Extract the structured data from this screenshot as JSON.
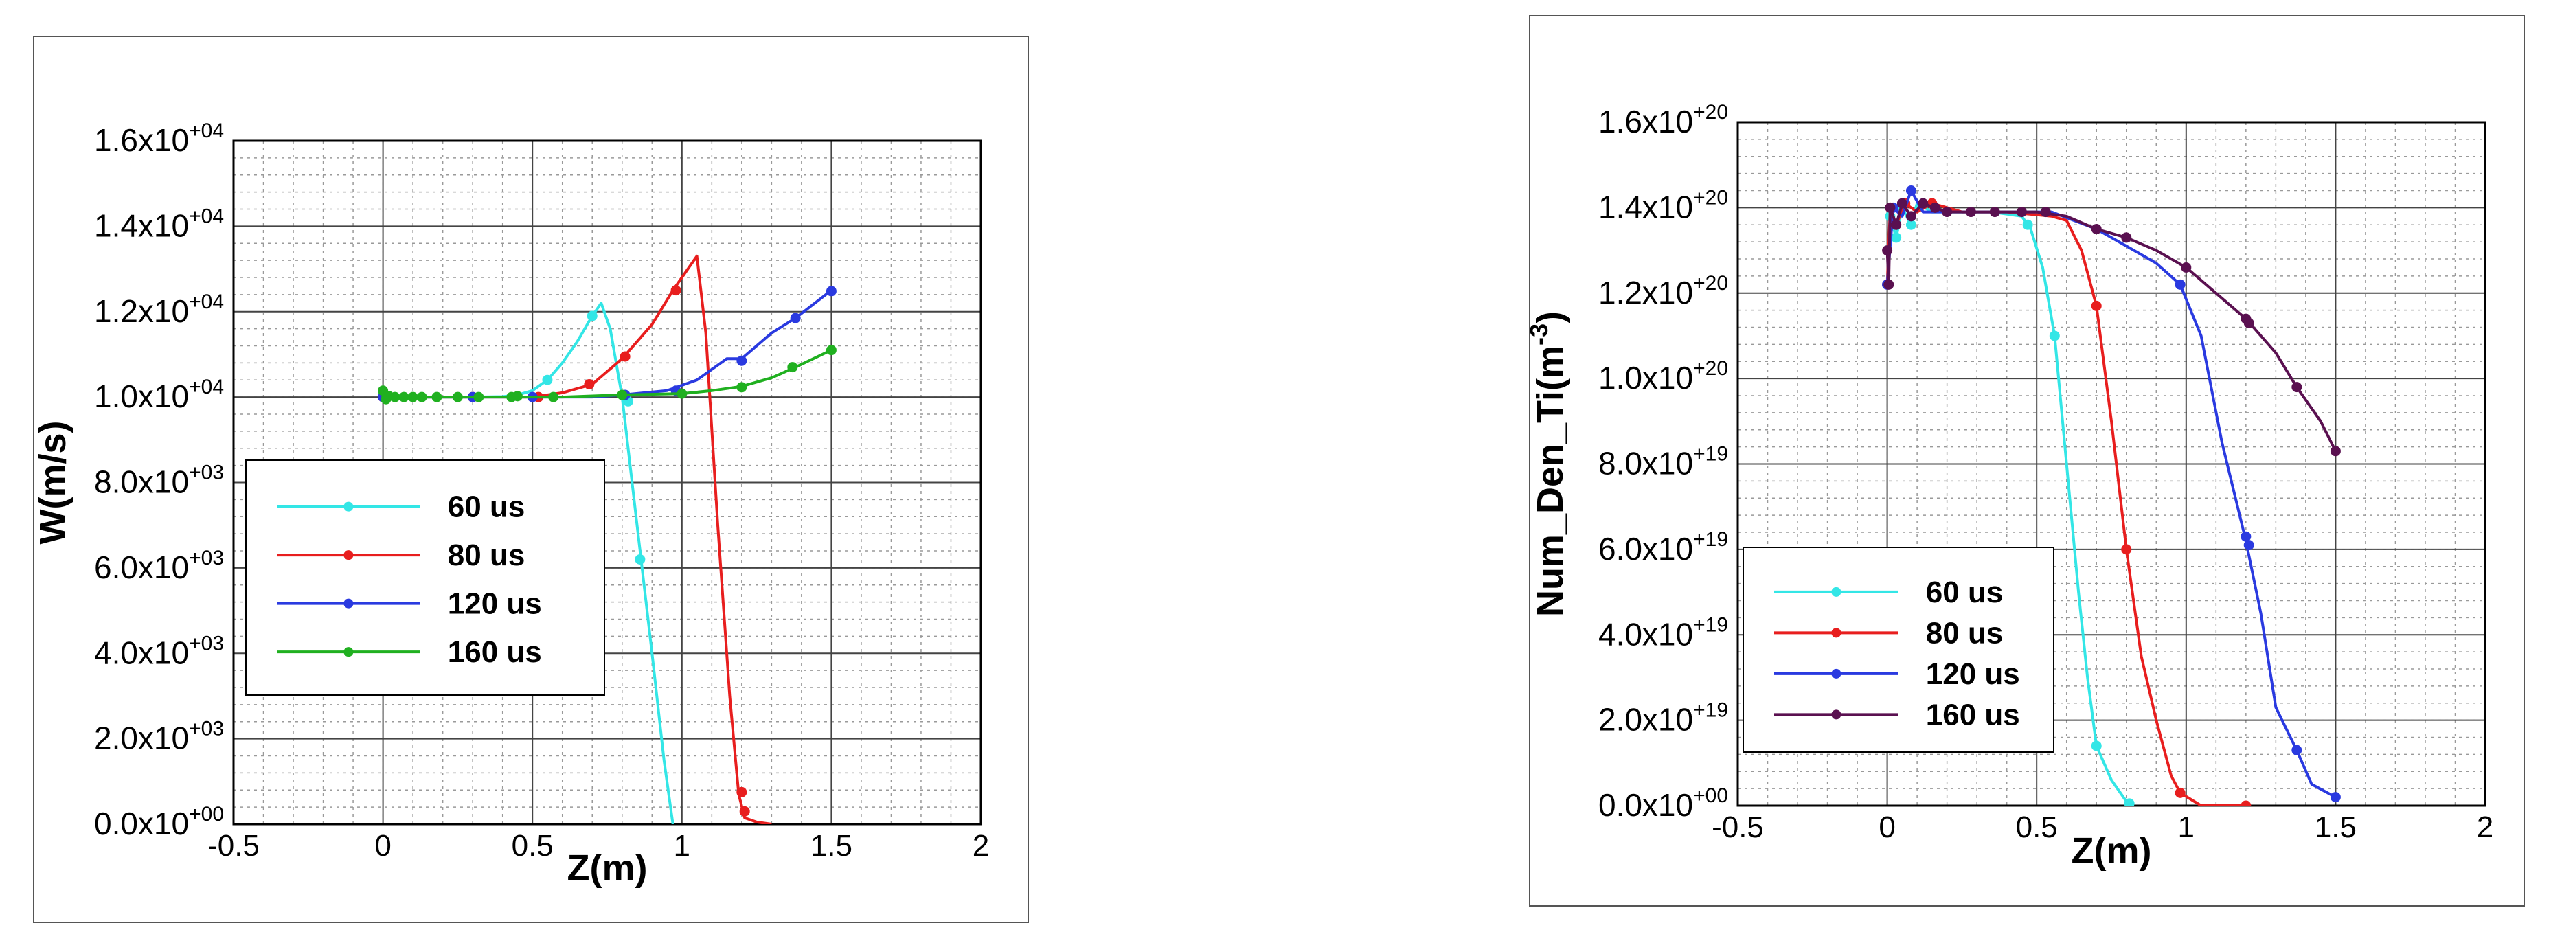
{
  "chart_data": [
    {
      "type": "line",
      "xlabel": "Z(m)",
      "ylabel": "W(m/s)",
      "xlim": [
        -0.5,
        2
      ],
      "ylim": [
        0,
        16000
      ],
      "xticks": [
        -0.5,
        0,
        0.5,
        1,
        1.5,
        2
      ],
      "xtick_labels": [
        "-0.5",
        "0",
        "0.5",
        "1",
        "1.5",
        "2"
      ],
      "yticks": [
        0,
        2000,
        4000,
        6000,
        8000,
        10000,
        12000,
        14000,
        16000
      ],
      "ytick_labels": [
        {
          "m": "0.0x10",
          "e": "+00"
        },
        {
          "m": "2.0x10",
          "e": "+03"
        },
        {
          "m": "4.0x10",
          "e": "+03"
        },
        {
          "m": "6.0x10",
          "e": "+03"
        },
        {
          "m": "8.0x10",
          "e": "+03"
        },
        {
          "m": "1.0x10",
          "e": "+04"
        },
        {
          "m": "1.2x10",
          "e": "+04"
        },
        {
          "m": "1.4x10",
          "e": "+04"
        },
        {
          "m": "1.6x10",
          "e": "+04"
        }
      ],
      "grid": true,
      "legend": "lower-left",
      "series": [
        {
          "name": "60 us",
          "color": "#33e6e6",
          "points": [
            [
              0,
              10100
            ],
            [
              0.03,
              10020
            ],
            [
              0.1,
              10000
            ],
            [
              0.2,
              10000
            ],
            [
              0.3,
              10000
            ],
            [
              0.4,
              10010
            ],
            [
              0.45,
              10050
            ],
            [
              0.5,
              10150
            ],
            [
              0.55,
              10400
            ],
            [
              0.6,
              10800
            ],
            [
              0.65,
              11300
            ],
            [
              0.7,
              11900
            ],
            [
              0.73,
              12200
            ],
            [
              0.76,
              11600
            ],
            [
              0.8,
              10000
            ],
            [
              0.85,
              7000
            ],
            [
              0.9,
              4000
            ],
            [
              0.94,
              1500
            ],
            [
              0.97,
              0
            ]
          ],
          "markers": [
            [
              0,
              10100
            ],
            [
              0.55,
              10400
            ],
            [
              0.7,
              11900
            ],
            [
              0.82,
              9900
            ],
            [
              0.86,
              6200
            ]
          ]
        },
        {
          "name": "80 us",
          "color": "#e81e1e",
          "points": [
            [
              0,
              10000
            ],
            [
              0.1,
              10000
            ],
            [
              0.3,
              10000
            ],
            [
              0.5,
              10000
            ],
            [
              0.6,
              10100
            ],
            [
              0.7,
              10300
            ],
            [
              0.8,
              10900
            ],
            [
              0.9,
              11700
            ],
            [
              0.97,
              12500
            ],
            [
              1.05,
              13300
            ],
            [
              1.08,
              11500
            ],
            [
              1.12,
              7000
            ],
            [
              1.16,
              3000
            ],
            [
              1.19,
              700
            ],
            [
              1.21,
              150
            ],
            [
              1.25,
              50
            ],
            [
              1.3,
              0
            ]
          ],
          "markers": [
            [
              0,
              10000
            ],
            [
              0.3,
              10000
            ],
            [
              0.52,
              10000
            ],
            [
              0.69,
              10300
            ],
            [
              0.81,
              10950
            ],
            [
              0.98,
              12500
            ],
            [
              1.2,
              750
            ],
            [
              1.21,
              300
            ]
          ]
        },
        {
          "name": "120 us",
          "color": "#2a3ae0",
          "points": [
            [
              0,
              10000
            ],
            [
              0.2,
              10000
            ],
            [
              0.5,
              10000
            ],
            [
              0.7,
              10000
            ],
            [
              0.8,
              10050
            ],
            [
              0.95,
              10150
            ],
            [
              1.05,
              10400
            ],
            [
              1.15,
              10900
            ],
            [
              1.2,
              10900
            ],
            [
              1.3,
              11500
            ],
            [
              1.38,
              11850
            ],
            [
              1.5,
              12500
            ]
          ],
          "markers": [
            [
              0,
              10000
            ],
            [
              0.3,
              10000
            ],
            [
              0.5,
              10000
            ],
            [
              0.81,
              10050
            ],
            [
              0.98,
              10150
            ],
            [
              1.2,
              10850
            ],
            [
              1.38,
              11850
            ],
            [
              1.5,
              12480
            ]
          ]
        },
        {
          "name": "160 us",
          "color": "#20b020",
          "points": [
            [
              0,
              10150
            ],
            [
              0.01,
              9950
            ],
            [
              0.02,
              10020
            ],
            [
              0.05,
              10000
            ],
            [
              0.1,
              10000
            ],
            [
              0.3,
              10000
            ],
            [
              0.6,
              10000
            ],
            [
              0.8,
              10050
            ],
            [
              1.0,
              10080
            ],
            [
              1.1,
              10150
            ],
            [
              1.2,
              10250
            ],
            [
              1.3,
              10450
            ],
            [
              1.38,
              10700
            ],
            [
              1.5,
              11100
            ]
          ],
          "markers": [
            [
              0,
              10150
            ],
            [
              0.01,
              9950
            ],
            [
              0.02,
              10020
            ],
            [
              0.04,
              10000
            ],
            [
              0.07,
              10000
            ],
            [
              0.1,
              10000
            ],
            [
              0.13,
              10000
            ],
            [
              0.18,
              10000
            ],
            [
              0.25,
              10000
            ],
            [
              0.32,
              10000
            ],
            [
              0.43,
              10000
            ],
            [
              0.45,
              10020
            ],
            [
              0.57,
              10000
            ],
            [
              0.8,
              10050
            ],
            [
              1.0,
              10080
            ],
            [
              1.2,
              10230
            ],
            [
              1.37,
              10700
            ],
            [
              1.5,
              11100
            ]
          ]
        }
      ]
    },
    {
      "type": "line",
      "xlabel": "Z(m)",
      "ylabel": "Num_Den_Ti(m",
      "ylabel_sup": "-3",
      "ylabel_tail": ")",
      "xlim": [
        -0.5,
        2
      ],
      "ylim": [
        0,
        1.6e+20
      ],
      "xticks": [
        -0.5,
        0,
        0.5,
        1,
        1.5,
        2
      ],
      "xtick_labels": [
        "-0.5",
        "0",
        "0.5",
        "1",
        "1.5",
        "2"
      ],
      "yticks": [
        0,
        2e+19,
        4e+19,
        6e+19,
        8e+19,
        1e+20,
        1.2e+20,
        1.4e+20,
        1.6e+20
      ],
      "ytick_labels": [
        {
          "m": "0.0x10",
          "e": "+00"
        },
        {
          "m": "2.0x10",
          "e": "+19"
        },
        {
          "m": "4.0x10",
          "e": "+19"
        },
        {
          "m": "6.0x10",
          "e": "+19"
        },
        {
          "m": "8.0x10",
          "e": "+19"
        },
        {
          "m": "1.0x10",
          "e": "+20"
        },
        {
          "m": "1.2x10",
          "e": "+20"
        },
        {
          "m": "1.4x10",
          "e": "+20"
        },
        {
          "m": "1.6x10",
          "e": "+20"
        }
      ],
      "grid": true,
      "legend": "lower-left",
      "series": [
        {
          "name": "60 us",
          "color": "#33e6e6",
          "points": [
            [
              0,
              1.22e+20
            ],
            [
              0.01,
              1.38e+20
            ],
            [
              0.03,
              1.33e+20
            ],
            [
              0.05,
              1.4e+20
            ],
            [
              0.08,
              1.36e+20
            ],
            [
              0.1,
              1.41e+20
            ],
            [
              0.15,
              1.39e+20
            ],
            [
              0.25,
              1.39e+20
            ],
            [
              0.35,
              1.39e+20
            ],
            [
              0.45,
              1.38e+20
            ],
            [
              0.48,
              1.35e+20
            ],
            [
              0.52,
              1.26e+20
            ],
            [
              0.56,
              1.1e+20
            ],
            [
              0.6,
              8e+19
            ],
            [
              0.64,
              5e+19
            ],
            [
              0.67,
              3e+19
            ],
            [
              0.7,
              1.4e+19
            ],
            [
              0.75,
              6e+18
            ],
            [
              0.81,
              0
            ]
          ],
          "markers": [
            [
              0,
              1.22e+20
            ],
            [
              0.01,
              1.38e+20
            ],
            [
              0.03,
              1.33e+20
            ],
            [
              0.05,
              1.4e+20
            ],
            [
              0.08,
              1.36e+20
            ],
            [
              0.47,
              1.36e+20
            ],
            [
              0.56,
              1.1e+20
            ],
            [
              0.7,
              1.4e+19
            ],
            [
              0.81,
              5e+17
            ]
          ]
        },
        {
          "name": "80 us",
          "color": "#e81e1e",
          "points": [
            [
              0,
              1.22e+20
            ],
            [
              0.01,
              1.4e+20
            ],
            [
              0.03,
              1.36e+20
            ],
            [
              0.06,
              1.41e+20
            ],
            [
              0.1,
              1.39e+20
            ],
            [
              0.15,
              1.41e+20
            ],
            [
              0.25,
              1.39e+20
            ],
            [
              0.4,
              1.39e+20
            ],
            [
              0.55,
              1.38e+20
            ],
            [
              0.6,
              1.37e+20
            ],
            [
              0.65,
              1.3e+20
            ],
            [
              0.7,
              1.17e+20
            ],
            [
              0.75,
              9e+19
            ],
            [
              0.8,
              6e+19
            ],
            [
              0.85,
              3.5e+19
            ],
            [
              0.9,
              2e+19
            ],
            [
              0.95,
              7e+18
            ],
            [
              0.98,
              3e+18
            ],
            [
              1.05,
              0
            ],
            [
              1.2,
              0
            ]
          ],
          "markers": [
            [
              0,
              1.22e+20
            ],
            [
              0.01,
              1.4e+20
            ],
            [
              0.03,
              1.36e+20
            ],
            [
              0.06,
              1.41e+20
            ],
            [
              0.15,
              1.41e+20
            ],
            [
              0.7,
              1.17e+20
            ],
            [
              0.8,
              6e+19
            ],
            [
              0.98,
              3e+18
            ],
            [
              1.2,
              0
            ]
          ]
        },
        {
          "name": "120 us",
          "color": "#2a3ae0",
          "points": [
            [
              0,
              1.22e+20
            ],
            [
              0.02,
              1.4e+20
            ],
            [
              0.05,
              1.38e+20
            ],
            [
              0.08,
              1.44e+20
            ],
            [
              0.12,
              1.39e+20
            ],
            [
              0.25,
              1.39e+20
            ],
            [
              0.4,
              1.39e+20
            ],
            [
              0.55,
              1.39e+20
            ],
            [
              0.7,
              1.35e+20
            ],
            [
              0.8,
              1.31e+20
            ],
            [
              0.9,
              1.27e+20
            ],
            [
              0.98,
              1.22e+20
            ],
            [
              1.05,
              1.1e+20
            ],
            [
              1.12,
              8.5e+19
            ],
            [
              1.2,
              6.2e+19
            ],
            [
              1.25,
              4.5e+19
            ],
            [
              1.3,
              2.3e+19
            ],
            [
              1.37,
              1.3e+19
            ],
            [
              1.42,
              5e+18
            ],
            [
              1.5,
              2e+18
            ]
          ],
          "markers": [
            [
              0,
              1.22e+20
            ],
            [
              0.02,
              1.4e+20
            ],
            [
              0.08,
              1.44e+20
            ],
            [
              0.98,
              1.22e+20
            ],
            [
              1.2,
              6.3e+19
            ],
            [
              1.21,
              6.1e+19
            ],
            [
              1.37,
              1.3e+19
            ],
            [
              1.5,
              2e+18
            ]
          ]
        },
        {
          "name": "160 us",
          "color": "#5a1050",
          "points": [
            [
              0,
              1.3e+20
            ],
            [
              0.005,
              1.22e+20
            ],
            [
              0.01,
              1.4e+20
            ],
            [
              0.03,
              1.36e+20
            ],
            [
              0.05,
              1.41e+20
            ],
            [
              0.08,
              1.38e+20
            ],
            [
              0.12,
              1.41e+20
            ],
            [
              0.2,
              1.39e+20
            ],
            [
              0.35,
              1.39e+20
            ],
            [
              0.5,
              1.39e+20
            ],
            [
              0.6,
              1.38e+20
            ],
            [
              0.7,
              1.35e+20
            ],
            [
              0.8,
              1.33e+20
            ],
            [
              0.9,
              1.3e+20
            ],
            [
              1.0,
              1.26e+20
            ],
            [
              1.1,
              1.2e+20
            ],
            [
              1.2,
              1.14e+20
            ],
            [
              1.3,
              1.06e+20
            ],
            [
              1.37,
              9.8e+19
            ],
            [
              1.45,
              9e+19
            ],
            [
              1.5,
              8.3e+19
            ]
          ],
          "markers": [
            [
              0,
              1.3e+20
            ],
            [
              0.005,
              1.22e+20
            ],
            [
              0.01,
              1.4e+20
            ],
            [
              0.03,
              1.36e+20
            ],
            [
              0.05,
              1.41e+20
            ],
            [
              0.08,
              1.38e+20
            ],
            [
              0.12,
              1.41e+20
            ],
            [
              0.16,
              1.4e+20
            ],
            [
              0.2,
              1.39e+20
            ],
            [
              0.28,
              1.39e+20
            ],
            [
              0.36,
              1.39e+20
            ],
            [
              0.45,
              1.39e+20
            ],
            [
              0.53,
              1.39e+20
            ],
            [
              0.7,
              1.35e+20
            ],
            [
              0.8,
              1.33e+20
            ],
            [
              1.0,
              1.26e+20
            ],
            [
              1.2,
              1.14e+20
            ],
            [
              1.21,
              1.13e+20
            ],
            [
              1.37,
              9.8e+19
            ],
            [
              1.5,
              8.3e+19
            ]
          ]
        }
      ]
    }
  ]
}
